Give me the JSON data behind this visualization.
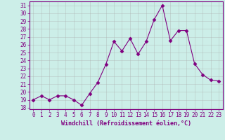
{
  "x": [
    0,
    1,
    2,
    3,
    4,
    5,
    6,
    7,
    8,
    9,
    10,
    11,
    12,
    13,
    14,
    15,
    16,
    17,
    18,
    19,
    20,
    21,
    22,
    23
  ],
  "y": [
    19,
    19.5,
    19,
    19.5,
    19.5,
    19,
    18.3,
    19.8,
    21.2,
    23.5,
    26.4,
    25.2,
    26.8,
    24.8,
    26.4,
    29.2,
    31.0,
    26.5,
    27.8,
    27.8,
    23.6,
    22.2,
    21.5,
    21.4
  ],
  "line_color": "#800080",
  "marker": "D",
  "marker_size": 2.5,
  "bg_color": "#cceee8",
  "grid_color": "#aaaaaa",
  "xlabel": "Windchill (Refroidissement éolien,°C)",
  "xlim": [
    -0.5,
    23.5
  ],
  "ylim": [
    17.8,
    31.5
  ],
  "yticks": [
    18,
    19,
    20,
    21,
    22,
    23,
    24,
    25,
    26,
    27,
    28,
    29,
    30,
    31
  ],
  "xticks": [
    0,
    1,
    2,
    3,
    4,
    5,
    6,
    7,
    8,
    9,
    10,
    11,
    12,
    13,
    14,
    15,
    16,
    17,
    18,
    19,
    20,
    21,
    22,
    23
  ],
  "tick_color": "#800080",
  "label_color": "#800080",
  "spine_color": "#800080",
  "tick_fontsize": 5.5,
  "xlabel_fontsize": 6.0
}
